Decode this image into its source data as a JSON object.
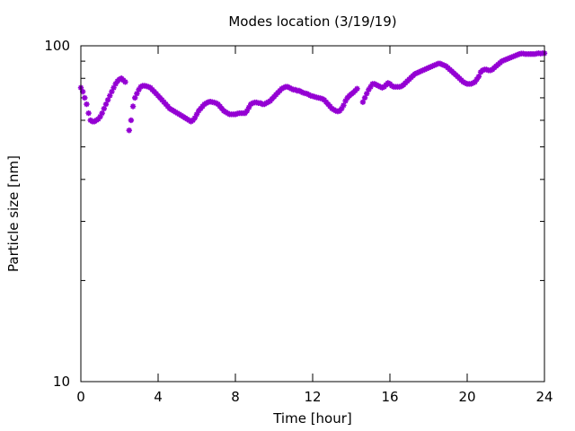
{
  "chart_data": {
    "type": "scatter",
    "title": "Modes location (3/19/19)",
    "xlabel": "Time [hour]",
    "ylabel": "Particle size [nm]",
    "xlim": [
      0,
      24
    ],
    "ylim": [
      10,
      100
    ],
    "yscale": "log",
    "grid": false,
    "legend": "none",
    "x_ticks": [
      "0",
      "4",
      "8",
      "12",
      "16",
      "20",
      "24"
    ],
    "y_ticks": [
      "10",
      "100"
    ],
    "marker_color": "#9400d3",
    "marker": "star",
    "series": [
      {
        "points": [
          [
            0.0,
            75
          ],
          [
            0.1,
            73
          ],
          [
            0.2,
            70
          ],
          [
            0.3,
            67
          ],
          [
            0.4,
            63
          ],
          [
            0.5,
            60
          ],
          [
            0.6,
            59.5
          ],
          [
            0.7,
            59.5
          ],
          [
            0.8,
            60
          ],
          [
            0.9,
            60.5
          ],
          [
            1.0,
            61.5
          ],
          [
            1.1,
            63
          ],
          [
            1.2,
            65
          ],
          [
            1.3,
            67
          ],
          [
            1.4,
            69
          ],
          [
            1.5,
            71
          ],
          [
            1.6,
            73
          ],
          [
            1.7,
            75
          ],
          [
            1.8,
            77
          ],
          [
            1.9,
            78.5
          ],
          [
            2.0,
            79.5
          ],
          [
            2.1,
            80
          ],
          [
            2.2,
            79
          ],
          [
            2.3,
            78
          ],
          [
            2.5,
            56
          ],
          [
            2.6,
            60
          ],
          [
            2.7,
            66
          ],
          [
            2.8,
            70
          ],
          [
            2.9,
            72
          ],
          [
            3.0,
            74
          ],
          [
            3.1,
            75.5
          ],
          [
            3.2,
            76
          ],
          [
            3.3,
            76
          ],
          [
            3.4,
            75.8
          ],
          [
            3.5,
            75.5
          ],
          [
            3.6,
            75
          ],
          [
            3.7,
            74
          ],
          [
            3.8,
            73
          ],
          [
            3.9,
            72
          ],
          [
            4.0,
            71
          ],
          [
            4.1,
            70
          ],
          [
            4.2,
            69
          ],
          [
            4.3,
            68
          ],
          [
            4.4,
            67
          ],
          [
            4.5,
            66
          ],
          [
            4.6,
            65
          ],
          [
            4.7,
            64.5
          ],
          [
            4.8,
            64
          ],
          [
            4.9,
            63.5
          ],
          [
            5.0,
            63
          ],
          [
            5.1,
            62.5
          ],
          [
            5.2,
            62
          ],
          [
            5.3,
            61.5
          ],
          [
            5.4,
            61
          ],
          [
            5.5,
            60.5
          ],
          [
            5.6,
            60
          ],
          [
            5.7,
            59.5
          ],
          [
            5.8,
            60
          ],
          [
            5.9,
            61
          ],
          [
            6.0,
            62.5
          ],
          [
            6.1,
            64
          ],
          [
            6.2,
            65
          ],
          [
            6.3,
            66
          ],
          [
            6.4,
            67
          ],
          [
            6.5,
            67.5
          ],
          [
            6.6,
            68
          ],
          [
            6.7,
            68.2
          ],
          [
            6.8,
            68
          ],
          [
            6.9,
            67.8
          ],
          [
            7.0,
            67.5
          ],
          [
            7.1,
            67
          ],
          [
            7.2,
            66
          ],
          [
            7.3,
            65
          ],
          [
            7.4,
            64
          ],
          [
            7.5,
            63.5
          ],
          [
            7.6,
            63
          ],
          [
            7.7,
            62.5
          ],
          [
            7.8,
            62.5
          ],
          [
            7.9,
            62.5
          ],
          [
            8.0,
            62.5
          ],
          [
            8.1,
            62.8
          ],
          [
            8.2,
            63
          ],
          [
            8.3,
            63
          ],
          [
            8.4,
            63
          ],
          [
            8.5,
            63
          ],
          [
            8.6,
            64
          ],
          [
            8.7,
            65.5
          ],
          [
            8.8,
            67
          ],
          [
            8.9,
            67.5
          ],
          [
            9.0,
            67.8
          ],
          [
            9.1,
            67.8
          ],
          [
            9.2,
            67.5
          ],
          [
            9.3,
            67.5
          ],
          [
            9.4,
            67
          ],
          [
            9.5,
            67
          ],
          [
            9.6,
            67.5
          ],
          [
            9.7,
            68
          ],
          [
            9.8,
            68.5
          ],
          [
            9.9,
            69.5
          ],
          [
            10.0,
            70.5
          ],
          [
            10.1,
            71.5
          ],
          [
            10.2,
            72.5
          ],
          [
            10.3,
            73.5
          ],
          [
            10.4,
            74.5
          ],
          [
            10.5,
            75
          ],
          [
            10.6,
            75.5
          ],
          [
            10.7,
            75.5
          ],
          [
            10.8,
            75
          ],
          [
            10.9,
            74.5
          ],
          [
            11.0,
            74
          ],
          [
            11.1,
            74
          ],
          [
            11.2,
            73.5
          ],
          [
            11.3,
            73.5
          ],
          [
            11.4,
            73
          ],
          [
            11.5,
            72.5
          ],
          [
            11.6,
            72.2
          ],
          [
            11.7,
            72
          ],
          [
            11.8,
            71.5
          ],
          [
            11.9,
            71
          ],
          [
            12.0,
            70.8
          ],
          [
            12.1,
            70.5
          ],
          [
            12.2,
            70.2
          ],
          [
            12.3,
            70
          ],
          [
            12.4,
            69.8
          ],
          [
            12.5,
            69.5
          ],
          [
            12.6,
            69
          ],
          [
            12.7,
            68
          ],
          [
            12.8,
            67
          ],
          [
            12.9,
            66
          ],
          [
            13.0,
            65
          ],
          [
            13.1,
            64.5
          ],
          [
            13.2,
            64
          ],
          [
            13.3,
            63.8
          ],
          [
            13.4,
            64
          ],
          [
            13.5,
            65
          ],
          [
            13.6,
            66.5
          ],
          [
            13.7,
            68.5
          ],
          [
            13.8,
            70
          ],
          [
            13.9,
            71
          ],
          [
            14.0,
            71.8
          ],
          [
            14.1,
            72.5
          ],
          [
            14.2,
            73.5
          ],
          [
            14.3,
            74.5
          ],
          [
            14.6,
            68
          ],
          [
            14.7,
            70
          ],
          [
            14.8,
            72
          ],
          [
            14.9,
            74
          ],
          [
            15.0,
            75.5
          ],
          [
            15.1,
            77
          ],
          [
            15.2,
            77
          ],
          [
            15.3,
            76.5
          ],
          [
            15.4,
            76
          ],
          [
            15.5,
            75.5
          ],
          [
            15.6,
            75
          ],
          [
            15.7,
            75.5
          ],
          [
            15.8,
            76.5
          ],
          [
            15.9,
            77.5
          ],
          [
            16.0,
            77
          ],
          [
            16.1,
            76
          ],
          [
            16.2,
            75.5
          ],
          [
            16.3,
            75.5
          ],
          [
            16.4,
            75.5
          ],
          [
            16.5,
            75.5
          ],
          [
            16.6,
            75.8
          ],
          [
            16.7,
            76.5
          ],
          [
            16.8,
            77.5
          ],
          [
            16.9,
            78.5
          ],
          [
            17.0,
            79.5
          ],
          [
            17.1,
            80.5
          ],
          [
            17.2,
            81.5
          ],
          [
            17.3,
            82.5
          ],
          [
            17.4,
            83
          ],
          [
            17.5,
            83.5
          ],
          [
            17.6,
            84
          ],
          [
            17.7,
            84.5
          ],
          [
            17.8,
            85
          ],
          [
            17.9,
            85.5
          ],
          [
            18.0,
            86
          ],
          [
            18.1,
            86.5
          ],
          [
            18.2,
            87
          ],
          [
            18.3,
            87.5
          ],
          [
            18.4,
            88
          ],
          [
            18.5,
            88.5
          ],
          [
            18.6,
            88.5
          ],
          [
            18.7,
            88
          ],
          [
            18.8,
            87.5
          ],
          [
            18.9,
            87
          ],
          [
            19.0,
            86
          ],
          [
            19.1,
            85
          ],
          [
            19.2,
            84
          ],
          [
            19.3,
            83
          ],
          [
            19.4,
            82
          ],
          [
            19.5,
            81
          ],
          [
            19.6,
            80
          ],
          [
            19.7,
            79
          ],
          [
            19.8,
            78
          ],
          [
            19.9,
            77.5
          ],
          [
            20.0,
            77
          ],
          [
            20.1,
            77
          ],
          [
            20.2,
            77
          ],
          [
            20.3,
            77.5
          ],
          [
            20.4,
            78
          ],
          [
            20.5,
            79.5
          ],
          [
            20.6,
            81
          ],
          [
            20.7,
            83.5
          ],
          [
            20.8,
            84.5
          ],
          [
            20.9,
            85
          ],
          [
            21.0,
            85
          ],
          [
            21.1,
            84.5
          ],
          [
            21.2,
            84.5
          ],
          [
            21.3,
            85
          ],
          [
            21.4,
            86
          ],
          [
            21.5,
            87
          ],
          [
            21.6,
            88
          ],
          [
            21.7,
            89
          ],
          [
            21.8,
            90
          ],
          [
            21.9,
            90.5
          ],
          [
            22.0,
            91
          ],
          [
            22.1,
            91.5
          ],
          [
            22.2,
            92
          ],
          [
            22.3,
            92.5
          ],
          [
            22.4,
            93
          ],
          [
            22.5,
            93.5
          ],
          [
            22.6,
            94
          ],
          [
            22.7,
            94.5
          ],
          [
            22.8,
            94.8
          ],
          [
            22.9,
            94.8
          ],
          [
            23.0,
            94.5
          ],
          [
            23.1,
            94.5
          ],
          [
            23.2,
            94.5
          ],
          [
            23.3,
            94.5
          ],
          [
            23.4,
            94.5
          ],
          [
            23.5,
            94.5
          ],
          [
            23.6,
            94.8
          ],
          [
            23.7,
            95
          ],
          [
            23.8,
            94.8
          ],
          [
            23.9,
            95
          ],
          [
            24.0,
            95
          ]
        ]
      }
    ]
  }
}
